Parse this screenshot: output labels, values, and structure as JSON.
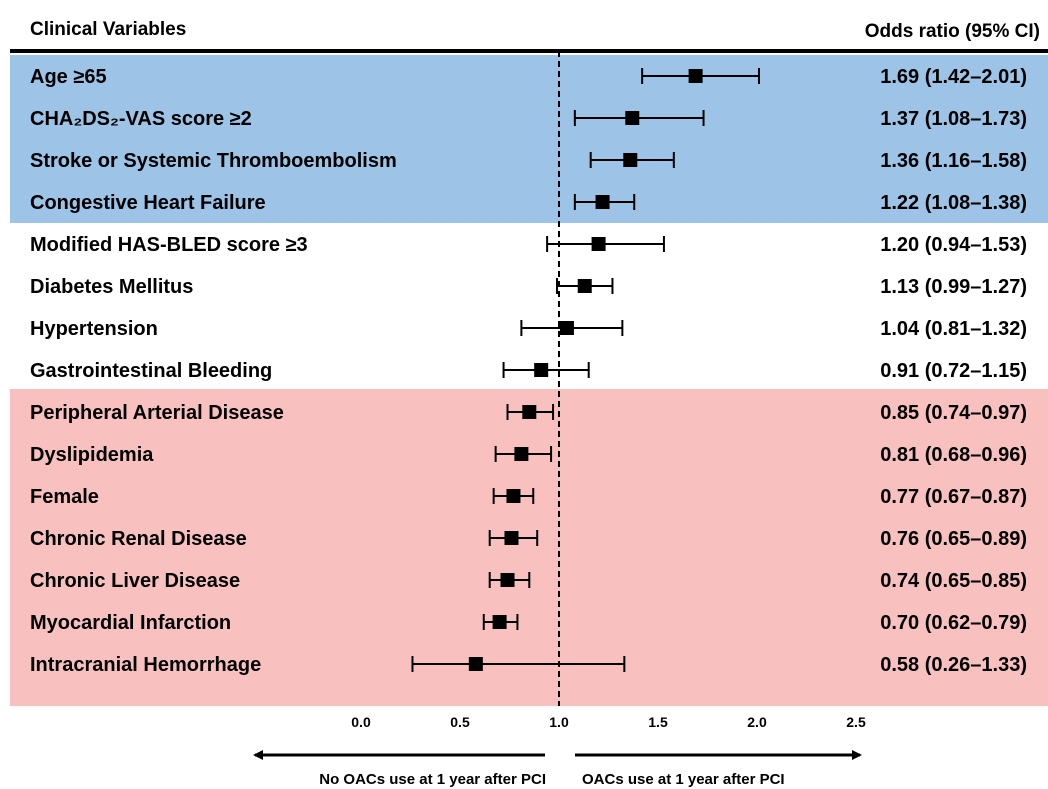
{
  "header": {
    "left": "Clinical Variables",
    "right": "Odds ratio (95% CI)"
  },
  "arrows": {
    "left_label": "No OACs use at 1 year after PCI",
    "right_label": "OACs use at 1 year after PCI"
  },
  "colors": {
    "positive_band": "#9dc3e6",
    "negative_band": "#f8c1c0",
    "marker": "#000000"
  },
  "chart_data": {
    "type": "forest",
    "xlim": [
      0.0,
      2.5
    ],
    "reference_line": 1.0,
    "x_ticks": [
      "0.0",
      "0.5",
      "1.0",
      "1.5",
      "2.0",
      "2.5"
    ],
    "rows": [
      {
        "label": "Age ≥65",
        "or": 1.69,
        "lo": 1.42,
        "hi": 2.01,
        "or_text": "1.69 (1.42–2.01)",
        "band": "positive"
      },
      {
        "label": "CHA₂DS₂-VAS score ≥2",
        "or": 1.37,
        "lo": 1.08,
        "hi": 1.73,
        "or_text": "1.37 (1.08–1.73)",
        "band": "positive"
      },
      {
        "label": "Stroke or Systemic Thromboembolism",
        "or": 1.36,
        "lo": 1.16,
        "hi": 1.58,
        "or_text": "1.36 (1.16–1.58)",
        "band": "positive"
      },
      {
        "label": "Congestive Heart Failure",
        "or": 1.22,
        "lo": 1.08,
        "hi": 1.38,
        "or_text": "1.22 (1.08–1.38)",
        "band": "positive"
      },
      {
        "label": "Modified HAS-BLED score ≥3",
        "or": 1.2,
        "lo": 0.94,
        "hi": 1.53,
        "or_text": "1.20 (0.94–1.53)",
        "band": "none"
      },
      {
        "label": "Diabetes Mellitus",
        "or": 1.13,
        "lo": 0.99,
        "hi": 1.27,
        "or_text": "1.13 (0.99–1.27)",
        "band": "none"
      },
      {
        "label": "Hypertension",
        "or": 1.04,
        "lo": 0.81,
        "hi": 1.32,
        "or_text": "1.04 (0.81–1.32)",
        "band": "none"
      },
      {
        "label": "Gastrointestinal Bleeding",
        "or": 0.91,
        "lo": 0.72,
        "hi": 1.15,
        "or_text": "0.91 (0.72–1.15)",
        "band": "none"
      },
      {
        "label": "Peripheral Arterial Disease",
        "or": 0.85,
        "lo": 0.74,
        "hi": 0.97,
        "or_text": "0.85 (0.74–0.97)",
        "band": "negative"
      },
      {
        "label": "Dyslipidemia",
        "or": 0.81,
        "lo": 0.68,
        "hi": 0.96,
        "or_text": "0.81 (0.68–0.96)",
        "band": "negative"
      },
      {
        "label": "Female",
        "or": 0.77,
        "lo": 0.67,
        "hi": 0.87,
        "or_text": "0.77 (0.67–0.87)",
        "band": "negative"
      },
      {
        "label": "Chronic Renal Disease",
        "or": 0.76,
        "lo": 0.65,
        "hi": 0.89,
        "or_text": "0.76 (0.65–0.89)",
        "band": "negative"
      },
      {
        "label": "Chronic Liver Disease",
        "or": 0.74,
        "lo": 0.65,
        "hi": 0.85,
        "or_text": "0.74 (0.65–0.85)",
        "band": "negative"
      },
      {
        "label": "Myocardial Infarction",
        "or": 0.7,
        "lo": 0.62,
        "hi": 0.79,
        "or_text": "0.70 (0.62–0.79)",
        "band": "negative"
      },
      {
        "label": "Intracranial Hemorrhage",
        "or": 0.58,
        "lo": 0.26,
        "hi": 1.33,
        "or_text": "0.58 (0.26–1.33)",
        "band": "negative"
      }
    ]
  }
}
